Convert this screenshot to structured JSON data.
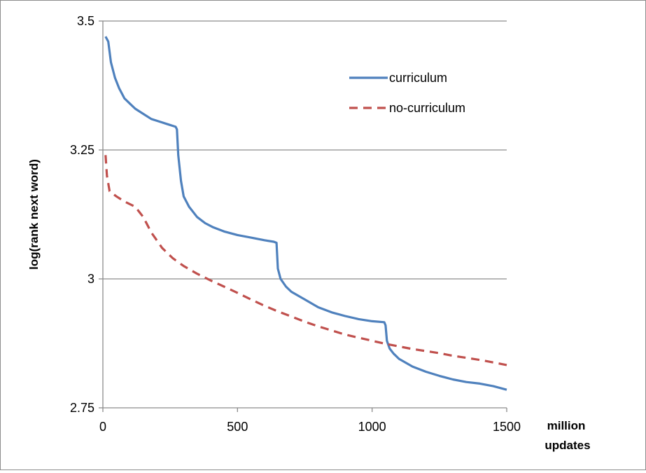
{
  "chart_data": {
    "type": "line",
    "title": "",
    "xlabel": [
      "million",
      "updates"
    ],
    "ylabel": "log(rank next word)",
    "xlim": [
      0,
      1500
    ],
    "ylim": [
      2.75,
      3.5
    ],
    "x_ticks": [
      "0",
      "500",
      "1000",
      "1500"
    ],
    "y_ticks": [
      "2.75",
      "3",
      "3.25",
      "3.5"
    ],
    "grid": "horizontal",
    "legend_position": "upper-right inside plot",
    "series": [
      {
        "name": "curriculum",
        "color": "#4f81bd",
        "style": "solid",
        "points": [
          [
            10,
            3.47
          ],
          [
            20,
            3.46
          ],
          [
            30,
            3.42
          ],
          [
            45,
            3.39
          ],
          [
            60,
            3.37
          ],
          [
            80,
            3.35
          ],
          [
            100,
            3.34
          ],
          [
            120,
            3.33
          ],
          [
            150,
            3.32
          ],
          [
            180,
            3.31
          ],
          [
            210,
            3.305
          ],
          [
            240,
            3.3
          ],
          [
            270,
            3.295
          ],
          [
            275,
            3.29
          ],
          [
            280,
            3.24
          ],
          [
            290,
            3.19
          ],
          [
            300,
            3.16
          ],
          [
            320,
            3.14
          ],
          [
            350,
            3.12
          ],
          [
            380,
            3.108
          ],
          [
            410,
            3.1
          ],
          [
            450,
            3.092
          ],
          [
            500,
            3.085
          ],
          [
            550,
            3.08
          ],
          [
            600,
            3.075
          ],
          [
            635,
            3.072
          ],
          [
            645,
            3.07
          ],
          [
            650,
            3.02
          ],
          [
            660,
            3.0
          ],
          [
            680,
            2.985
          ],
          [
            700,
            2.975
          ],
          [
            750,
            2.96
          ],
          [
            800,
            2.945
          ],
          [
            850,
            2.935
          ],
          [
            900,
            2.928
          ],
          [
            950,
            2.922
          ],
          [
            1000,
            2.918
          ],
          [
            1045,
            2.916
          ],
          [
            1050,
            2.91
          ],
          [
            1055,
            2.88
          ],
          [
            1065,
            2.865
          ],
          [
            1080,
            2.855
          ],
          [
            1100,
            2.845
          ],
          [
            1150,
            2.83
          ],
          [
            1200,
            2.82
          ],
          [
            1250,
            2.812
          ],
          [
            1300,
            2.805
          ],
          [
            1350,
            2.8
          ],
          [
            1400,
            2.797
          ],
          [
            1450,
            2.792
          ],
          [
            1500,
            2.785
          ]
        ]
      },
      {
        "name": "no-curriculum",
        "color": "#c0504d",
        "style": "dashed",
        "points": [
          [
            10,
            3.24
          ],
          [
            15,
            3.2
          ],
          [
            25,
            3.17
          ],
          [
            50,
            3.16
          ],
          [
            80,
            3.15
          ],
          [
            120,
            3.14
          ],
          [
            150,
            3.12
          ],
          [
            180,
            3.09
          ],
          [
            220,
            3.06
          ],
          [
            260,
            3.04
          ],
          [
            300,
            3.025
          ],
          [
            350,
            3.01
          ],
          [
            400,
            2.997
          ],
          [
            450,
            2.985
          ],
          [
            500,
            2.973
          ],
          [
            550,
            2.96
          ],
          [
            600,
            2.948
          ],
          [
            650,
            2.937
          ],
          [
            700,
            2.927
          ],
          [
            750,
            2.917
          ],
          [
            800,
            2.908
          ],
          [
            850,
            2.9
          ],
          [
            900,
            2.892
          ],
          [
            950,
            2.886
          ],
          [
            1000,
            2.88
          ],
          [
            1050,
            2.874
          ],
          [
            1100,
            2.869
          ],
          [
            1150,
            2.864
          ],
          [
            1200,
            2.86
          ],
          [
            1250,
            2.856
          ],
          [
            1300,
            2.851
          ],
          [
            1350,
            2.847
          ],
          [
            1400,
            2.843
          ],
          [
            1450,
            2.838
          ],
          [
            1500,
            2.833
          ]
        ]
      }
    ]
  }
}
